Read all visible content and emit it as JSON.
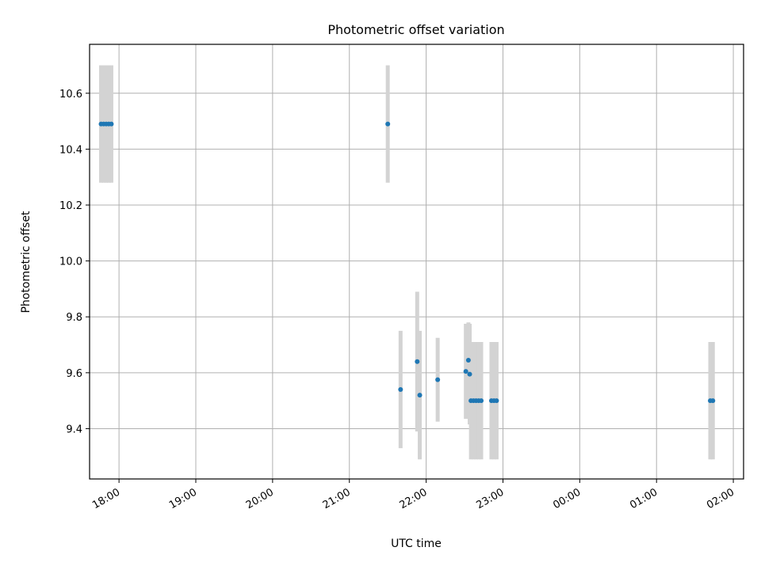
{
  "chart_data": {
    "type": "scatter",
    "title": "Photometric offset variation",
    "xlabel": "UTC time",
    "ylabel": "Photometric offset",
    "grid": true,
    "x_axis_type": "time",
    "xlim": [
      "17:37",
      "02:08"
    ],
    "ylim": [
      9.22,
      10.775
    ],
    "x_ticks": [
      "18:00",
      "19:00",
      "20:00",
      "21:00",
      "22:00",
      "23:00",
      "00:00",
      "01:00",
      "02:00"
    ],
    "y_ticks": [
      "9.4",
      "9.6",
      "9.8",
      "10.0",
      "10.2",
      "10.4",
      "10.6"
    ],
    "series": [
      {
        "marker_color": "#1f77b4",
        "errorbar_color": "#d3d3d3",
        "points": [
          {
            "x": "17:46",
            "y": 10.49,
            "err": 0.21
          },
          {
            "x": "17:48",
            "y": 10.49,
            "err": 0.21
          },
          {
            "x": "17:50",
            "y": 10.49,
            "err": 0.21
          },
          {
            "x": "17:52",
            "y": 10.49,
            "err": 0.21
          },
          {
            "x": "17:54",
            "y": 10.49,
            "err": 0.21
          },
          {
            "x": "21:30",
            "y": 10.49,
            "err": 0.21
          },
          {
            "x": "21:40",
            "y": 9.54,
            "err": 0.21
          },
          {
            "x": "21:53",
            "y": 9.64,
            "err": 0.25
          },
          {
            "x": "21:55",
            "y": 9.52,
            "err": 0.23
          },
          {
            "x": "22:09",
            "y": 9.575,
            "err": 0.15
          },
          {
            "x": "22:31",
            "y": 9.605,
            "err": 0.17
          },
          {
            "x": "22:33",
            "y": 9.645,
            "err": 0.135
          },
          {
            "x": "22:34",
            "y": 9.595,
            "err": 0.18
          },
          {
            "x": "22:35",
            "y": 9.5,
            "err": 0.21
          },
          {
            "x": "22:37",
            "y": 9.5,
            "err": 0.21
          },
          {
            "x": "22:39",
            "y": 9.5,
            "err": 0.21
          },
          {
            "x": "22:41",
            "y": 9.5,
            "err": 0.21
          },
          {
            "x": "22:43",
            "y": 9.5,
            "err": 0.21
          },
          {
            "x": "22:51",
            "y": 9.5,
            "err": 0.21
          },
          {
            "x": "22:53",
            "y": 9.5,
            "err": 0.21
          },
          {
            "x": "22:55",
            "y": 9.5,
            "err": 0.21
          },
          {
            "x": "01:42",
            "y": 9.5,
            "err": 0.21
          },
          {
            "x": "01:44",
            "y": 9.5,
            "err": 0.21
          }
        ]
      }
    ]
  }
}
